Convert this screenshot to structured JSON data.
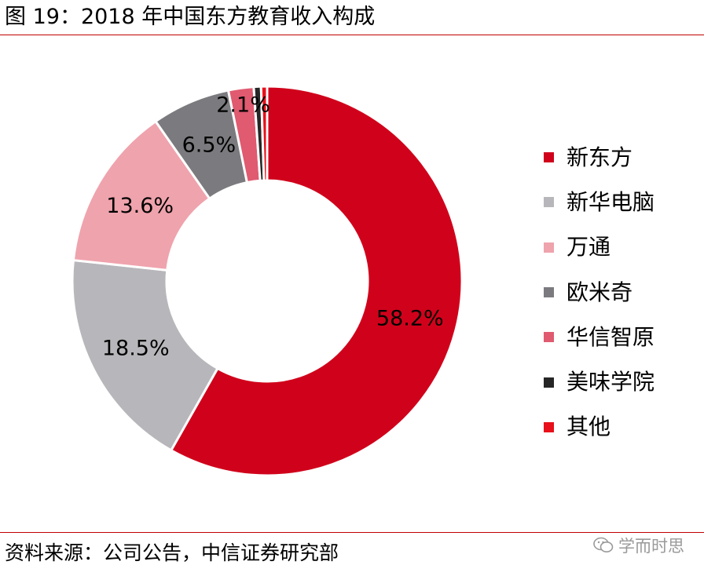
{
  "figure": {
    "title": "图 19：2018 年中国东方教育收入构成",
    "source": "资料来源：公司公告，中信证券研究部",
    "watermark": "学而时思",
    "watermark_icon": "wechat-icon"
  },
  "chart_data": {
    "type": "pie",
    "donut": true,
    "title": "",
    "legend_position": "right",
    "series": [
      {
        "name": "新东方",
        "value": 58.2,
        "label": "58.2%",
        "color": "#d0021b"
      },
      {
        "name": "新华电脑",
        "value": 18.5,
        "label": "18.5%",
        "color": "#b7b6ba"
      },
      {
        "name": "万通",
        "value": 13.6,
        "label": "13.6%",
        "color": "#efa3ad"
      },
      {
        "name": "欧米奇",
        "value": 6.5,
        "label": "6.5%",
        "color": "#7b7b7f"
      },
      {
        "name": "华信智原",
        "value": 2.1,
        "label": "2.1%",
        "color": "#e05a70"
      },
      {
        "name": "美味学院",
        "value": 0.6,
        "label": "",
        "color": "#262626"
      },
      {
        "name": "其他",
        "value": 0.5,
        "label": "",
        "color": "#e8101a"
      }
    ]
  }
}
